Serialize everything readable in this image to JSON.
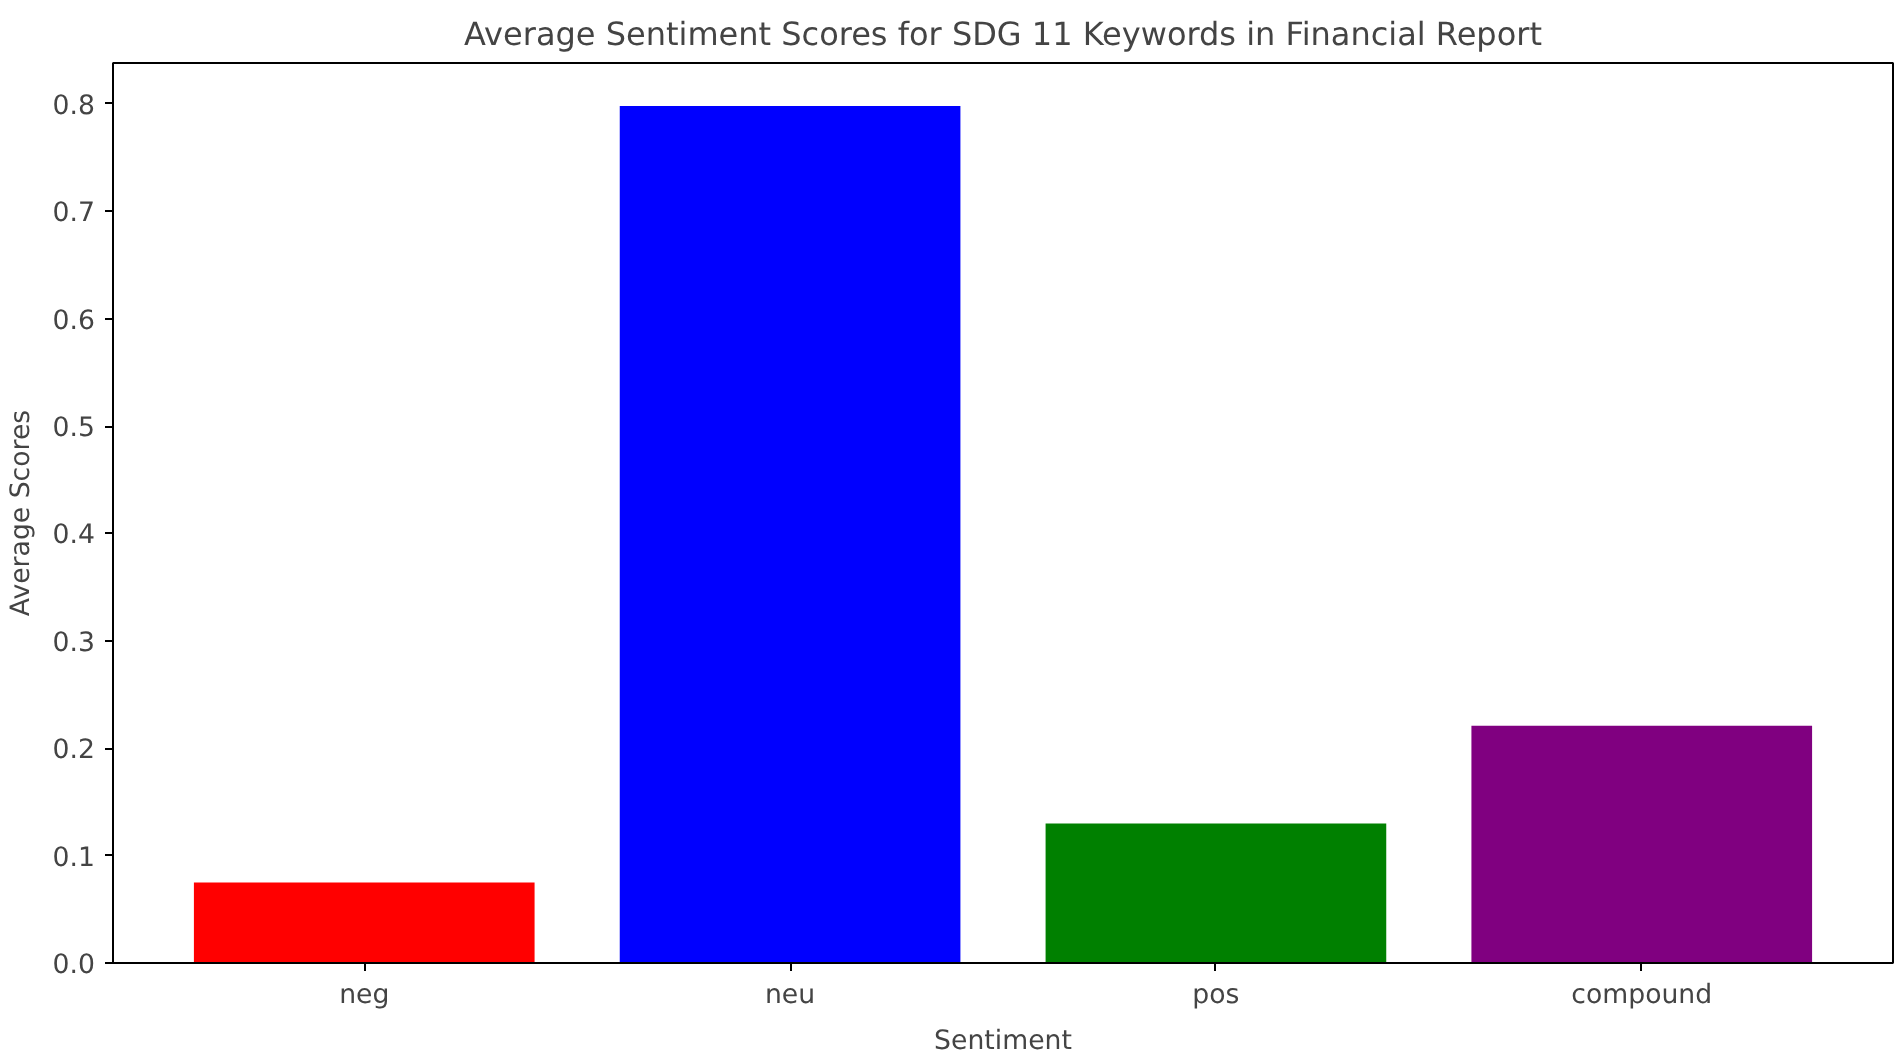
{
  "chart_data": {
    "type": "bar",
    "title": "Average Sentiment Scores for SDG 11 Keywords in Financial Report",
    "xlabel": "Sentiment",
    "ylabel": "Average Scores",
    "categories": [
      "neg",
      "neu",
      "pos",
      "compound"
    ],
    "values": [
      0.075,
      0.798,
      0.13,
      0.221
    ],
    "colors": [
      "#ff0000",
      "#0000ff",
      "#008000",
      "#800080"
    ],
    "ylim": [
      0,
      0.838
    ],
    "yticks": [
      {
        "value": 0,
        "label": "0.0"
      },
      0.1,
      0.2,
      0.3,
      0.4,
      0.5,
      0.6,
      0.7,
      0.8
    ],
    "grid": false
  }
}
